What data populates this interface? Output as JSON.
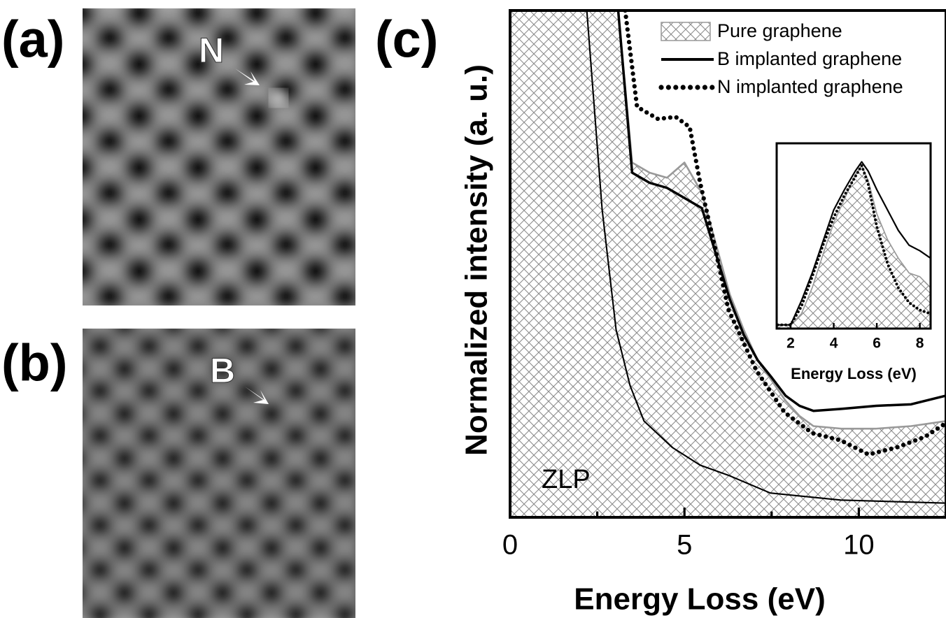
{
  "panels": {
    "a": {
      "label": "(a)",
      "marker": "N"
    },
    "b": {
      "label": "(b)",
      "marker": "B"
    }
  },
  "chart_data": [
    {
      "type": "line",
      "label": "(c)",
      "xlabel": "Energy Loss (eV)",
      "ylabel": "Normalized intensity (a. u.)",
      "xlim": [
        0,
        12.5
      ],
      "xticks": [
        0,
        5,
        10
      ],
      "xminorticks": [
        2.5,
        7.5,
        12.5
      ],
      "ylim": [
        0,
        100
      ],
      "legend": "upper right",
      "series": [
        {
          "name": "Pure graphene",
          "style": "hatch",
          "color": "#999999",
          "x": [
            2.6,
            3.1,
            3.5,
            4.0,
            4.5,
            5.0,
            5.5,
            5.9,
            6.3,
            6.7,
            7.1,
            7.5,
            7.9,
            8.3,
            8.7,
            9.5,
            10.5,
            11.5,
            12.5
          ],
          "values": [
            100,
            100,
            70,
            68,
            67,
            70,
            64,
            54,
            44,
            37,
            31,
            27,
            23,
            20,
            18,
            17.5,
            17.5,
            18,
            19
          ]
        },
        {
          "name": "B implanted graphene",
          "style": "solid",
          "color": "#000000",
          "x": [
            2.6,
            3.1,
            3.5,
            4.0,
            4.5,
            5.0,
            5.5,
            5.9,
            6.3,
            6.7,
            7.1,
            7.5,
            7.9,
            8.3,
            8.7,
            9.5,
            10.5,
            11.5,
            12.5
          ],
          "values": [
            100,
            100,
            68,
            66,
            65,
            63,
            61,
            52,
            43,
            36,
            31,
            27.6,
            24,
            22,
            21,
            21.4,
            22,
            22.3,
            24
          ]
        },
        {
          "name": "N implanted graphene",
          "style": "dotted",
          "color": "#000000",
          "x": [
            3.3,
            3.64,
            4.24,
            4.75,
            5.15,
            5.45,
            5.85,
            6.26,
            7.06,
            7.87,
            8.67,
            9.48,
            10.28,
            11.09,
            11.9,
            12.5
          ],
          "values": [
            100,
            81,
            78.6,
            79,
            77,
            66,
            54,
            41,
            29,
            20.7,
            16.6,
            15.2,
            12.4,
            13.8,
            15.9,
            18.6
          ]
        }
      ],
      "zlp": {
        "label": "ZLP",
        "color": "#000000",
        "x": [
          2.2,
          2.64,
          3.04,
          3.44,
          3.84,
          4.65,
          5.45,
          6.26,
          7.46,
          9.48,
          12.5
        ],
        "values": [
          100,
          60.7,
          37,
          26,
          19,
          13.8,
          10.3,
          8.3,
          4.8,
          3.4,
          2.8
        ]
      }
    },
    {
      "type": "line",
      "xlabel": "Energy Loss (eV)",
      "xlim": [
        1.35,
        8.5
      ],
      "xticks": [
        2,
        4,
        6,
        8
      ],
      "ylim": [
        0,
        100
      ],
      "series": [
        {
          "style": "hatch",
          "color": "#999999",
          "x": [
            1.4,
            2.0,
            2.5,
            3.0,
            3.5,
            4.0,
            4.5,
            5.0,
            5.3,
            5.6,
            6.0,
            6.5,
            7.0,
            7.5,
            8.0,
            8.5
          ],
          "values": [
            2,
            2,
            8,
            22,
            40,
            57,
            70,
            83,
            88,
            80,
            62,
            48,
            38,
            30,
            28,
            22
          ]
        },
        {
          "style": "solid",
          "color": "#000000",
          "x": [
            1.4,
            2.0,
            2.5,
            3.0,
            3.5,
            4.0,
            4.5,
            5.0,
            5.3,
            5.6,
            6.0,
            6.5,
            7.0,
            7.5,
            8.0,
            8.5
          ],
          "values": [
            2,
            2,
            15,
            30,
            47,
            64,
            75,
            85,
            90,
            85,
            75,
            64,
            53,
            45,
            42,
            38
          ]
        },
        {
          "style": "dotted",
          "color": "#000000",
          "x": [
            1.4,
            2.0,
            2.5,
            3.0,
            3.5,
            4.0,
            4.5,
            5.0,
            5.3,
            5.6,
            6.0,
            6.5,
            7.0,
            7.5,
            8.0,
            8.5
          ],
          "values": [
            2,
            2,
            12,
            28,
            45,
            60,
            72,
            82,
            88,
            78,
            55,
            35,
            22,
            14,
            10,
            8
          ]
        }
      ]
    }
  ]
}
